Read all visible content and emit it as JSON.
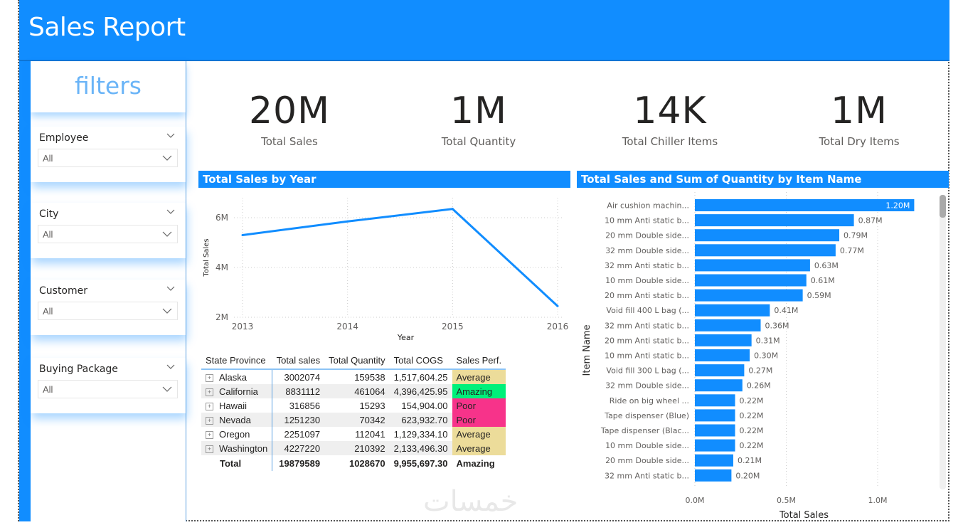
{
  "header": {
    "title": "Sales Report",
    "accent": "#118dff"
  },
  "sidebar": {
    "title": "filters",
    "slicers": [
      {
        "label": "Employee",
        "value": "All"
      },
      {
        "label": "City",
        "value": "All"
      },
      {
        "label": "Customer",
        "value": "All"
      },
      {
        "label": "Buying Package",
        "value": "All"
      }
    ]
  },
  "kpis": [
    {
      "value": "20M",
      "label": "Total Sales"
    },
    {
      "value": "1M",
      "label": "Total Quantity"
    },
    {
      "value": "14K",
      "label": "Total Chiller Items"
    },
    {
      "value": "1M",
      "label": "Total Dry Items"
    }
  ],
  "matrix": {
    "columns": [
      "State Province",
      "Total sales",
      "Total Quantity",
      "Total COGS",
      "Sales Perf."
    ],
    "rows": [
      {
        "state": "Alaska",
        "sales": "3002074",
        "quantity": "159538",
        "cogs": "1,517,604.25",
        "perf": "Average",
        "perf_color": "#ecdc9a"
      },
      {
        "state": "California",
        "sales": "8831112",
        "quantity": "461064",
        "cogs": "4,396,425.95",
        "perf": "Amazing",
        "perf_color": "#00f07a"
      },
      {
        "state": "Hawaii",
        "sales": "316856",
        "quantity": "15293",
        "cogs": "154,904.00",
        "perf": "Poor",
        "perf_color": "#f7338a"
      },
      {
        "state": "Nevada",
        "sales": "1251230",
        "quantity": "70342",
        "cogs": "623,932.70",
        "perf": "Poor",
        "perf_color": "#f7338a"
      },
      {
        "state": "Oregon",
        "sales": "2251097",
        "quantity": "112041",
        "cogs": "1,129,334.10",
        "perf": "Average",
        "perf_color": "#ecdc9a"
      },
      {
        "state": "Washington",
        "sales": "4227220",
        "quantity": "210392",
        "cogs": "2,133,496.30",
        "perf": "Average",
        "perf_color": "#ecdc9a"
      }
    ],
    "total": {
      "state": "Total",
      "sales": "19879589",
      "quantity": "1028670",
      "cogs": "9,955,697.30",
      "perf": "Amazing"
    }
  },
  "watermark": "خمسات",
  "chart_data": [
    {
      "type": "line",
      "title": "Total Sales by Year",
      "xlabel": "Year",
      "ylabel": "Total Sales",
      "x": [
        "2013",
        "2014",
        "2015",
        "2016"
      ],
      "series": [
        {
          "name": "Total Sales",
          "values": [
            5.3,
            5.85,
            6.35,
            2.45
          ],
          "color": "#118dff"
        }
      ],
      "yticks": [
        "2M",
        "4M",
        "6M"
      ],
      "ytick_values": [
        2,
        4,
        6
      ],
      "ylim": [
        2,
        6.8
      ],
      "units": "M",
      "grid": true
    },
    {
      "type": "bar",
      "orientation": "horizontal",
      "title": "Total Sales and Sum of Quantity by Item Name",
      "xlabel": "Total Sales",
      "ylabel": "Item Name",
      "categories": [
        "Air cushion machin...",
        "10 mm Anti static b...",
        "20 mm Double side...",
        "32 mm Double side...",
        "32 mm Anti static b...",
        "10 mm Double side...",
        "20 mm Anti static b...",
        "Void fill 400 L bag (...",
        "32 mm Anti static b...",
        "20 mm Anti static b...",
        "10 mm Anti static b...",
        "Void fill 300 L bag (...",
        "32 mm Double side...",
        "Ride on big wheel ...",
        "Tape dispenser (Blue)",
        "Tape dispenser (Blac...",
        "10 mm Double side...",
        "20 mm Double side...",
        "32 mm Anti static b..."
      ],
      "values": [
        1.2,
        0.87,
        0.79,
        0.77,
        0.63,
        0.61,
        0.59,
        0.41,
        0.36,
        0.31,
        0.3,
        0.27,
        0.26,
        0.22,
        0.22,
        0.22,
        0.22,
        0.21,
        0.2
      ],
      "data_labels": [
        "1.20M",
        "0.87M",
        "0.79M",
        "0.77M",
        "0.63M",
        "0.61M",
        "0.59M",
        "0.41M",
        "0.36M",
        "0.31M",
        "0.30M",
        "0.27M",
        "0.26M",
        "0.22M",
        "0.22M",
        "0.22M",
        "0.22M",
        "0.21M",
        "0.20M"
      ],
      "xticks": [
        "0.0M",
        "0.5M",
        "1.0M"
      ],
      "xtick_values": [
        0,
        0.5,
        1.0
      ],
      "xlim": [
        0,
        1.35
      ],
      "units": "M",
      "color": "#118dff",
      "grid": true
    }
  ]
}
